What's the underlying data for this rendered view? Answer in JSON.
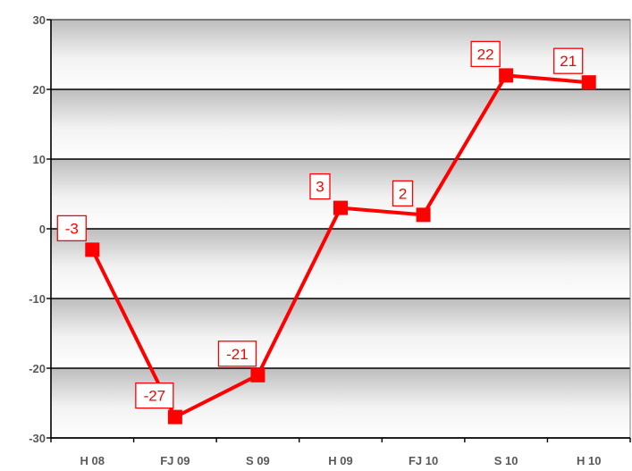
{
  "chart_data": {
    "type": "line",
    "categories": [
      "H 08",
      "FJ 09",
      "S 09",
      "H 09",
      "FJ 10",
      "S 10",
      "H 10"
    ],
    "series": [
      {
        "values": [
          -3,
          -27,
          -21,
          3,
          2,
          22,
          21
        ],
        "color": "#ff0000"
      }
    ],
    "data_labels": [
      "-3",
      "-27",
      "-21",
      "3",
      "2",
      "22",
      "21"
    ],
    "ylim": [
      -30,
      30
    ],
    "yticks": [
      -30,
      -20,
      -10,
      0,
      10,
      20,
      30
    ],
    "ytick_labels": [
      "-30",
      "-20",
      "-10",
      "0",
      "10",
      "20",
      "30"
    ],
    "grid": true,
    "background": "gray-white banded gradient",
    "line_color": "#ff0000",
    "label_border_color": "#ff0000",
    "label_text_color": "#ff0000",
    "axis_text_color": "#595959"
  }
}
